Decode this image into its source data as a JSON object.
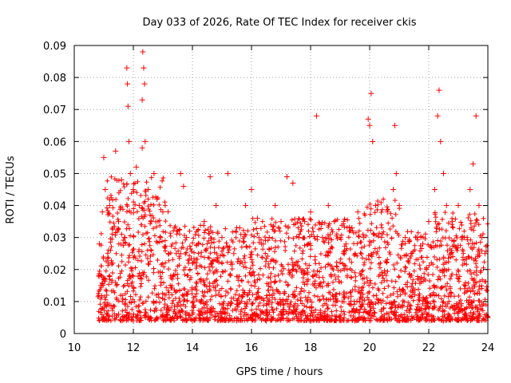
{
  "chart_data": {
    "type": "scatter",
    "title": "Day 033 of 2026, Rate Of TEC Index for receiver ckis",
    "xlabel": "GPS time / hours",
    "ylabel": "ROTI / TECUs",
    "xlim": [
      10,
      24
    ],
    "ylim": [
      0,
      0.09
    ],
    "x_ticks": [
      10,
      12,
      14,
      16,
      18,
      20,
      22,
      24
    ],
    "x_tick_labels": [
      "10",
      "12",
      "14",
      "16",
      "18",
      "20",
      "22",
      "24"
    ],
    "y_ticks": [
      0,
      0.01,
      0.02,
      0.03,
      0.04,
      0.05,
      0.06,
      0.07,
      0.08,
      0.09
    ],
    "y_tick_labels": [
      "0",
      "0.01",
      "0.02",
      "0.03",
      "0.04",
      "0.05",
      "0.06",
      "0.07",
      "0.08",
      "0.09"
    ],
    "grid": true,
    "marker": "+",
    "series": [
      {
        "name": "ROTI",
        "color": "#ff0000",
        "points": [
          [
            10.85,
            0.028
          ],
          [
            10.9,
            0.015
          ],
          [
            10.95,
            0.038
          ],
          [
            11.0,
            0.055
          ],
          [
            11.05,
            0.045
          ],
          [
            11.1,
            0.012
          ],
          [
            11.2,
            0.04
          ],
          [
            11.3,
            0.022
          ],
          [
            11.4,
            0.057
          ],
          [
            11.5,
            0.035
          ],
          [
            11.6,
            0.048
          ],
          [
            11.7,
            0.03
          ],
          [
            11.78,
            0.083
          ],
          [
            11.8,
            0.078
          ],
          [
            11.82,
            0.071
          ],
          [
            11.85,
            0.06
          ],
          [
            11.9,
            0.05
          ],
          [
            12.0,
            0.045
          ],
          [
            12.1,
            0.052
          ],
          [
            12.2,
            0.04
          ],
          [
            12.3,
            0.058
          ],
          [
            12.32,
            0.088
          ],
          [
            12.35,
            0.083
          ],
          [
            12.38,
            0.078
          ],
          [
            12.3,
            0.073
          ],
          [
            12.4,
            0.06
          ],
          [
            12.5,
            0.045
          ],
          [
            12.6,
            0.035
          ],
          [
            12.7,
            0.05
          ],
          [
            12.8,
            0.042
          ],
          [
            12.9,
            0.03
          ],
          [
            13.0,
            0.038
          ],
          [
            13.2,
            0.025
          ],
          [
            13.4,
            0.033
          ],
          [
            13.6,
            0.05
          ],
          [
            13.7,
            0.046
          ],
          [
            13.8,
            0.03
          ],
          [
            14.0,
            0.022
          ],
          [
            14.2,
            0.028
          ],
          [
            14.4,
            0.035
          ],
          [
            14.6,
            0.049
          ],
          [
            14.8,
            0.04
          ],
          [
            15.0,
            0.03
          ],
          [
            15.2,
            0.05
          ],
          [
            15.4,
            0.025
          ],
          [
            15.6,
            0.033
          ],
          [
            15.8,
            0.04
          ],
          [
            16.0,
            0.045
          ],
          [
            16.2,
            0.036
          ],
          [
            16.4,
            0.028
          ],
          [
            16.6,
            0.03
          ],
          [
            16.8,
            0.04
          ],
          [
            17.0,
            0.035
          ],
          [
            17.2,
            0.049
          ],
          [
            17.4,
            0.047
          ],
          [
            17.6,
            0.03
          ],
          [
            17.8,
            0.035
          ],
          [
            18.0,
            0.038
          ],
          [
            18.2,
            0.068
          ],
          [
            18.4,
            0.03
          ],
          [
            18.6,
            0.04
          ],
          [
            18.8,
            0.035
          ],
          [
            19.0,
            0.03
          ],
          [
            19.2,
            0.028
          ],
          [
            19.4,
            0.033
          ],
          [
            19.6,
            0.038
          ],
          [
            19.8,
            0.03
          ],
          [
            19.95,
            0.067
          ],
          [
            20.0,
            0.065
          ],
          [
            20.05,
            0.075
          ],
          [
            20.1,
            0.06
          ],
          [
            20.2,
            0.04
          ],
          [
            20.4,
            0.03
          ],
          [
            20.6,
            0.038
          ],
          [
            20.8,
            0.045
          ],
          [
            20.85,
            0.065
          ],
          [
            20.9,
            0.05
          ],
          [
            21.0,
            0.04
          ],
          [
            21.2,
            0.03
          ],
          [
            21.4,
            0.025
          ],
          [
            21.6,
            0.03
          ],
          [
            21.8,
            0.028
          ],
          [
            22.0,
            0.035
          ],
          [
            22.2,
            0.045
          ],
          [
            22.3,
            0.068
          ],
          [
            22.35,
            0.076
          ],
          [
            22.4,
            0.06
          ],
          [
            22.5,
            0.05
          ],
          [
            22.6,
            0.04
          ],
          [
            22.8,
            0.035
          ],
          [
            23.0,
            0.04
          ],
          [
            23.2,
            0.03
          ],
          [
            23.4,
            0.045
          ],
          [
            23.5,
            0.053
          ],
          [
            23.6,
            0.068
          ],
          [
            23.7,
            0.04
          ],
          [
            23.8,
            0.03
          ],
          [
            23.9,
            0.025
          ],
          [
            24.0,
            0.02
          ],
          [
            11.0,
            0.005
          ],
          [
            11.5,
            0.006
          ],
          [
            12.0,
            0.004
          ],
          [
            12.5,
            0.005
          ],
          [
            13.0,
            0.006
          ],
          [
            13.5,
            0.005
          ],
          [
            14.0,
            0.004
          ],
          [
            14.5,
            0.005
          ],
          [
            15.0,
            0.006
          ],
          [
            15.5,
            0.004
          ],
          [
            16.0,
            0.005
          ],
          [
            16.5,
            0.004
          ],
          [
            17.0,
            0.005
          ],
          [
            17.5,
            0.006
          ],
          [
            18.0,
            0.004
          ],
          [
            18.5,
            0.005
          ],
          [
            19.0,
            0.005
          ],
          [
            19.5,
            0.004
          ],
          [
            20.0,
            0.006
          ],
          [
            20.5,
            0.005
          ],
          [
            21.0,
            0.004
          ],
          [
            21.5,
            0.005
          ],
          [
            22.0,
            0.006
          ],
          [
            22.5,
            0.004
          ],
          [
            23.0,
            0.005
          ],
          [
            23.5,
            0.006
          ],
          [
            24.0,
            0.005
          ]
        ]
      }
    ]
  }
}
